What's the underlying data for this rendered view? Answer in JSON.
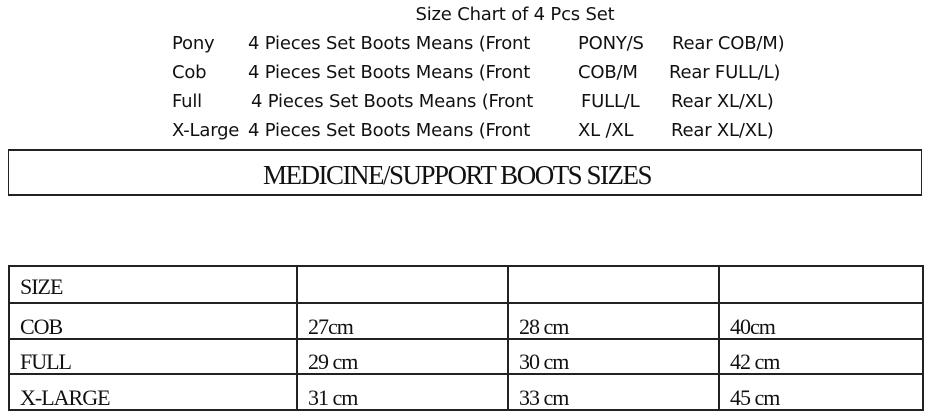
{
  "title": "Size Chart of 4 Pcs Set",
  "set_rows": [
    {
      "label": "Pony",
      "desc": "4 Pieces Set Boots Means (Front",
      "front": "PONY/S",
      "rear": "Rear COB/M)"
    },
    {
      "label": "Cob",
      "desc": "4 Pieces Set Boots Means (Front",
      "front": "COB/M",
      "rear": "Rear FULL/L)"
    },
    {
      "label": "Full",
      "desc": "4 Pieces Set Boots Means (Front",
      "front": "FULL/L",
      "rear": "Rear XL/XL)"
    },
    {
      "label": "X-Large",
      "desc": "4 Pieces Set Boots Means (Front",
      "front": "XL /XL",
      "rear": "Rear XL/XL)"
    }
  ],
  "banner": "MEDICINE/SUPPORT BOOTS SIZES",
  "table": {
    "header": [
      "SIZE",
      "",
      "",
      ""
    ],
    "rows": [
      [
        "COB",
        "27cm",
        "28 cm",
        "40cm"
      ],
      [
        "FULL",
        "29 cm",
        "30 cm",
        "42 cm"
      ],
      [
        "X-LARGE",
        "31 cm",
        "33 cm",
        "45 cm"
      ]
    ]
  }
}
